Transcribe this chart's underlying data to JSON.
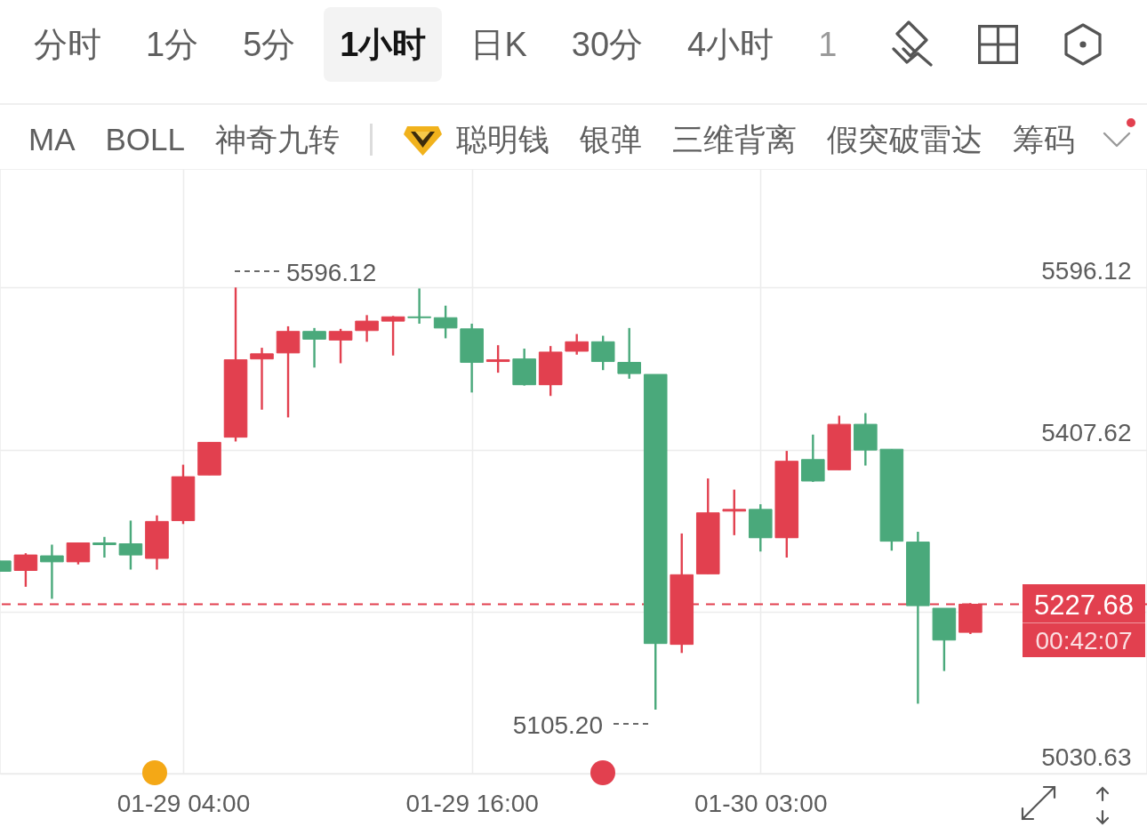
{
  "chart_data": {
    "type": "candlestick",
    "categories": [
      null,
      null,
      null,
      null,
      null,
      null,
      null,
      "01-29 04:00",
      null,
      null,
      null,
      null,
      null,
      null,
      null,
      null,
      null,
      null,
      "01-29 16:00",
      null,
      null,
      null,
      null,
      null,
      null,
      null,
      null,
      null,
      null,
      "01-30 03:00",
      null,
      null,
      null,
      null,
      null,
      null,
      null,
      null
    ],
    "ohlc": [
      [
        5278,
        5278,
        5266,
        5266
      ],
      [
        5267,
        5287,
        5248,
        5285
      ],
      [
        5284,
        5297,
        5234,
        5277
      ],
      [
        5277,
        5299,
        5274,
        5299
      ],
      [
        5299,
        5306,
        5282,
        5297
      ],
      [
        5298,
        5325,
        5268,
        5285
      ],
      [
        5281,
        5331,
        5268,
        5324
      ],
      [
        5325,
        5390,
        5321,
        5376
      ],
      [
        5378,
        5416,
        5378,
        5416
      ],
      [
        5422,
        5596.12,
        5417,
        5512
      ],
      [
        5513,
        5526,
        5454,
        5519
      ],
      [
        5520,
        5551,
        5445,
        5545
      ],
      [
        5545,
        5549,
        5503,
        5536
      ],
      [
        5535,
        5548,
        5508,
        5545
      ],
      [
        5546,
        5564,
        5533,
        5557
      ],
      [
        5557,
        5563,
        5517,
        5562
      ],
      [
        5562,
        5595,
        5554,
        5561
      ],
      [
        5561,
        5575,
        5537,
        5549
      ],
      [
        5548,
        5554,
        5474,
        5509
      ],
      [
        5510,
        5529,
        5497,
        5512
      ],
      [
        5513,
        5525,
        5482,
        5483
      ],
      [
        5483,
        5528,
        5470,
        5521
      ],
      [
        5522,
        5542,
        5518,
        5533
      ],
      [
        5533,
        5540,
        5500,
        5510
      ],
      [
        5509,
        5549,
        5490,
        5496
      ],
      [
        5495,
        5495,
        5105.2,
        5182
      ],
      [
        5181,
        5310,
        5171,
        5262
      ],
      [
        5263,
        5374,
        5263,
        5334
      ],
      [
        5336,
        5361,
        5308,
        5338
      ],
      [
        5338,
        5344,
        5289,
        5305
      ],
      [
        5305,
        5406,
        5282,
        5394
      ],
      [
        5396,
        5425,
        5370,
        5371
      ],
      [
        5384,
        5447,
        5384,
        5437
      ],
      [
        5437,
        5450,
        5389,
        5407
      ],
      [
        5408,
        5408,
        5290,
        5301
      ],
      [
        5300,
        5312,
        5112,
        5226
      ],
      [
        5223,
        5223,
        5150,
        5186
      ],
      [
        5195,
        5229,
        5193,
        5227.68
      ]
    ],
    "colors": [
      "#4aa97b",
      "#e2404f",
      "#4aa97b",
      "#e2404f",
      "#4aa97b",
      "#4aa97b",
      "#e2404f",
      "#e2404f",
      "#e2404f",
      "#e2404f",
      "#e2404f",
      "#e2404f",
      "#4aa97b",
      "#e2404f",
      "#e2404f",
      "#e2404f",
      "#4aa97b",
      "#4aa97b",
      "#4aa97b",
      "#e2404f",
      "#4aa97b",
      "#e2404f",
      "#e2404f",
      "#4aa97b",
      "#4aa97b",
      "#4aa97b",
      "#e2404f",
      "#e2404f",
      "#e2404f",
      "#4aa97b",
      "#e2404f",
      "#4aa97b",
      "#e2404f",
      "#4aa97b",
      "#4aa97b",
      "#4aa97b",
      "#4aa97b",
      "#e2404f"
    ],
    "ylim": [
      5030.63,
      5734
    ],
    "yticks": [
      5030.63,
      {
        "value": 5219.13,
        "label": null
      },
      5407.62,
      5596.12
    ],
    "grid": true,
    "ref_lines": [
      {
        "axis": "y",
        "value": 5227.68,
        "label": "5227.68",
        "color": "#e2404f",
        "line_style": "dashed"
      }
    ],
    "annotations": [
      "分时",
      "1分",
      "5分",
      "1小时",
      "日K",
      "30分",
      "4小时",
      "1",
      "MA",
      "BOLL",
      "神奇九转",
      "聪明钱",
      "银弹",
      "三维背离",
      "假突破雷达",
      "筹码",
      "00:42:07",
      "5596.12",
      "5105.20"
    ]
  }
}
